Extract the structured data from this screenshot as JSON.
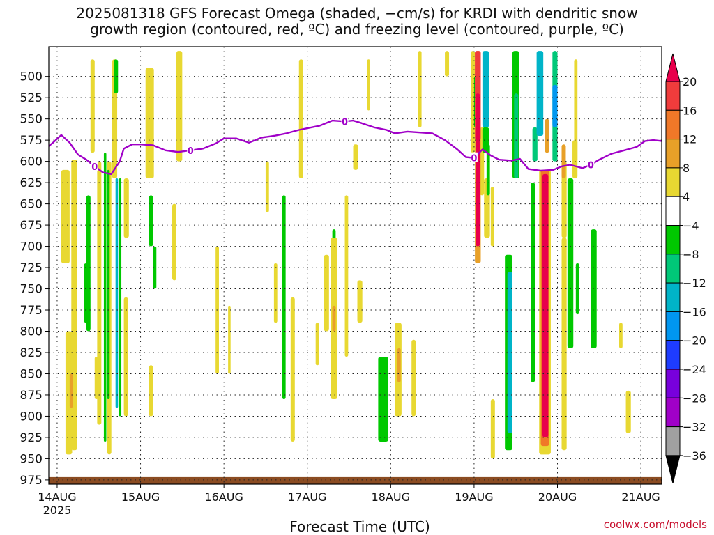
{
  "title_line1": "2025081318 GFS Forecast Omega (shaded, −cm/s) for KRDI with dendritic snow",
  "title_line2": "growth region (contoured, red, ºC) and freezing level (contoured, purple, ºC)",
  "xaxis_title": "Forecast Time (UTC)",
  "credit": "coolwx.com/models",
  "colors": {
    "freezing_line": "#a000c8",
    "ground": "#8b4c22",
    "grid": "#222222"
  },
  "chart_data": {
    "type": "heatmap",
    "y_ticks": [
      "500",
      "525",
      "550",
      "575",
      "600",
      "625",
      "650",
      "675",
      "700",
      "725",
      "750",
      "775",
      "800",
      "825",
      "850",
      "875",
      "900",
      "925",
      "950",
      "975"
    ],
    "x_ticks": [
      "14AUG",
      "15AUG",
      "16AUG",
      "17AUG",
      "18AUG",
      "19AUG",
      "20AUG",
      "21AUG"
    ],
    "x_year": "2025",
    "ylim": [
      465,
      980
    ],
    "xlim_days": [
      13.9,
      21.25
    ],
    "legend": {
      "labels": [
        "20",
        "16",
        "12",
        "8",
        "4",
        "−4",
        "−8",
        "−12",
        "−16",
        "−20",
        "−24",
        "−28",
        "−32",
        "−36"
      ],
      "colors": [
        "#e8004c",
        "#f03c3c",
        "#f07828",
        "#e8a028",
        "#e8d832",
        "#ffffff",
        "#00c800",
        "#00c878",
        "#00b4c8",
        "#0096f0",
        "#1e3cff",
        "#7800dc",
        "#a000c8",
        "#a0a0a0",
        "#000000"
      ]
    },
    "freezing_level_label": "0",
    "freezing_level": [
      [
        13.9,
        582
      ],
      [
        13.95,
        578
      ],
      [
        14.05,
        569
      ],
      [
        14.15,
        578
      ],
      [
        14.25,
        592
      ],
      [
        14.35,
        598
      ],
      [
        14.45,
        606
      ],
      [
        14.55,
        613
      ],
      [
        14.65,
        615
      ],
      [
        14.75,
        600
      ],
      [
        14.8,
        585
      ],
      [
        14.9,
        580
      ],
      [
        15.0,
        580
      ],
      [
        15.15,
        581
      ],
      [
        15.3,
        587
      ],
      [
        15.45,
        589
      ],
      [
        15.6,
        587
      ],
      [
        15.75,
        585
      ],
      [
        15.9,
        579
      ],
      [
        16.0,
        573
      ],
      [
        16.15,
        573
      ],
      [
        16.3,
        578
      ],
      [
        16.45,
        572
      ],
      [
        16.6,
        570
      ],
      [
        16.75,
        567
      ],
      [
        16.9,
        563
      ],
      [
        17.0,
        561
      ],
      [
        17.15,
        558
      ],
      [
        17.3,
        552
      ],
      [
        17.45,
        553
      ],
      [
        17.55,
        552
      ],
      [
        17.65,
        555
      ],
      [
        17.8,
        560
      ],
      [
        17.95,
        563
      ],
      [
        18.05,
        567
      ],
      [
        18.2,
        565
      ],
      [
        18.35,
        566
      ],
      [
        18.5,
        567
      ],
      [
        18.65,
        575
      ],
      [
        18.8,
        586
      ],
      [
        18.9,
        595
      ],
      [
        19.0,
        596
      ],
      [
        19.1,
        586
      ],
      [
        19.2,
        593
      ],
      [
        19.3,
        598
      ],
      [
        19.45,
        599
      ],
      [
        19.55,
        597
      ],
      [
        19.65,
        609
      ],
      [
        19.8,
        611
      ],
      [
        19.95,
        610
      ],
      [
        20.05,
        606
      ],
      [
        20.15,
        604
      ],
      [
        20.3,
        608
      ],
      [
        20.4,
        604
      ],
      [
        20.5,
        598
      ],
      [
        20.65,
        591
      ],
      [
        20.8,
        587
      ],
      [
        20.95,
        583
      ],
      [
        21.05,
        576
      ],
      [
        21.15,
        575
      ],
      [
        21.25,
        576
      ]
    ],
    "shaded_regions": [
      {
        "x": 14.17,
        "w": 0.07,
        "p": [
          598,
          940
        ],
        "c": 4
      },
      {
        "x": 14.32,
        "w": 0.05,
        "p": [
          720,
          790
        ],
        "c": 6
      },
      {
        "x": 14.35,
        "w": 0.05,
        "p": [
          640,
          800
        ],
        "c": 6
      },
      {
        "x": 14.48,
        "w": 0.05,
        "p": [
          600,
          910
        ],
        "c": 4
      },
      {
        "x": 14.56,
        "w": 0.03,
        "p": [
          590,
          930
        ],
        "c": 6
      },
      {
        "x": 14.6,
        "w": 0.05,
        "p": [
          600,
          945
        ],
        "c": 4
      },
      {
        "x": 14.7,
        "w": 0.03,
        "p": [
          620,
          890
        ],
        "c": 8
      },
      {
        "x": 14.74,
        "w": 0.03,
        "p": [
          620,
          900
        ],
        "c": 6
      },
      {
        "x": 15.1,
        "w": 0.05,
        "p": [
          640,
          700
        ],
        "c": 6
      },
      {
        "x": 15.15,
        "w": 0.04,
        "p": [
          700,
          750
        ],
        "c": 6
      },
      {
        "x": 16.7,
        "w": 0.04,
        "p": [
          640,
          880
        ],
        "c": 6
      },
      {
        "x": 17.3,
        "w": 0.04,
        "p": [
          680,
          760
        ],
        "c": 6
      },
      {
        "x": 17.85,
        "w": 0.12,
        "p": [
          830,
          930
        ],
        "c": 6
      },
      {
        "x": 19.37,
        "w": 0.09,
        "p": [
          710,
          940
        ],
        "c": 6
      },
      {
        "x": 19.4,
        "w": 0.06,
        "p": [
          730,
          920
        ],
        "c": 8
      },
      {
        "x": 19.7,
        "w": 0.06,
        "p": [
          560,
          600
        ],
        "c": 7
      },
      {
        "x": 19.94,
        "w": 0.06,
        "p": [
          470,
          600
        ],
        "c": 7
      },
      {
        "x": 19.94,
        "w": 0.06,
        "p": [
          510,
          560
        ],
        "c": 9
      },
      {
        "x": 20.12,
        "w": 0.07,
        "p": [
          620,
          820
        ],
        "c": 6
      },
      {
        "x": 20.22,
        "w": 0.04,
        "p": [
          720,
          780
        ],
        "c": 6
      },
      {
        "x": 20.4,
        "w": 0.07,
        "p": [
          680,
          820
        ],
        "c": 6
      },
      {
        "x": 14.05,
        "w": 0.1,
        "p": [
          610,
          720
        ],
        "c": 4
      },
      {
        "x": 14.1,
        "w": 0.08,
        "p": [
          800,
          945
        ],
        "c": 4
      },
      {
        "x": 14.15,
        "w": 0.04,
        "p": [
          850,
          890
        ],
        "c": 3
      },
      {
        "x": 14.4,
        "w": 0.05,
        "p": [
          480,
          590
        ],
        "c": 4
      },
      {
        "x": 14.66,
        "w": 0.06,
        "p": [
          480,
          620
        ],
        "c": 4
      },
      {
        "x": 14.8,
        "w": 0.06,
        "p": [
          620,
          690
        ],
        "c": 4
      },
      {
        "x": 14.8,
        "w": 0.05,
        "p": [
          760,
          900
        ],
        "c": 4
      },
      {
        "x": 15.06,
        "w": 0.1,
        "p": [
          490,
          620
        ],
        "c": 4
      },
      {
        "x": 15.1,
        "w": 0.05,
        "p": [
          840,
          900
        ],
        "c": 4
      },
      {
        "x": 15.43,
        "w": 0.07,
        "p": [
          470,
          600
        ],
        "c": 4
      },
      {
        "x": 15.38,
        "w": 0.05,
        "p": [
          650,
          740
        ],
        "c": 4
      },
      {
        "x": 15.9,
        "w": 0.04,
        "p": [
          700,
          850
        ],
        "c": 4
      },
      {
        "x": 16.5,
        "w": 0.04,
        "p": [
          600,
          660
        ],
        "c": 4
      },
      {
        "x": 16.6,
        "w": 0.04,
        "p": [
          720,
          790
        ],
        "c": 4
      },
      {
        "x": 16.8,
        "w": 0.05,
        "p": [
          760,
          930
        ],
        "c": 4
      },
      {
        "x": 16.9,
        "w": 0.05,
        "p": [
          480,
          620
        ],
        "c": 4
      },
      {
        "x": 17.1,
        "w": 0.04,
        "p": [
          790,
          840
        ],
        "c": 4
      },
      {
        "x": 17.2,
        "w": 0.06,
        "p": [
          710,
          800
        ],
        "c": 4
      },
      {
        "x": 17.28,
        "w": 0.08,
        "p": [
          690,
          880
        ],
        "c": 4
      },
      {
        "x": 17.3,
        "w": 0.04,
        "p": [
          770,
          800
        ],
        "c": 3
      },
      {
        "x": 17.45,
        "w": 0.04,
        "p": [
          640,
          830
        ],
        "c": 4
      },
      {
        "x": 17.55,
        "w": 0.06,
        "p": [
          580,
          610
        ],
        "c": 4
      },
      {
        "x": 17.6,
        "w": 0.06,
        "p": [
          740,
          790
        ],
        "c": 4
      },
      {
        "x": 17.72,
        "w": 0.03,
        "p": [
          480,
          540
        ],
        "c": 4
      },
      {
        "x": 18.05,
        "w": 0.08,
        "p": [
          790,
          900
        ],
        "c": 4
      },
      {
        "x": 18.08,
        "w": 0.04,
        "p": [
          820,
          860
        ],
        "c": 3
      },
      {
        "x": 18.25,
        "w": 0.05,
        "p": [
          810,
          900
        ],
        "c": 4
      },
      {
        "x": 18.33,
        "w": 0.04,
        "p": [
          470,
          560
        ],
        "c": 4
      },
      {
        "x": 18.96,
        "w": 0.05,
        "p": [
          470,
          590
        ],
        "c": 4
      },
      {
        "x": 19.07,
        "w": 0.05,
        "p": [
          560,
          640
        ],
        "c": 4
      },
      {
        "x": 19.12,
        "w": 0.07,
        "p": [
          620,
          690
        ],
        "c": 4
      },
      {
        "x": 19.2,
        "w": 0.04,
        "p": [
          630,
          700
        ],
        "c": 4
      },
      {
        "x": 19.2,
        "w": 0.05,
        "p": [
          880,
          950
        ],
        "c": 4
      },
      {
        "x": 20.05,
        "w": 0.06,
        "p": [
          600,
          690
        ],
        "c": 4
      },
      {
        "x": 20.05,
        "w": 0.06,
        "p": [
          690,
          940
        ],
        "c": 4
      },
      {
        "x": 20.05,
        "w": 0.05,
        "p": [
          580,
          620
        ],
        "c": 3
      },
      {
        "x": 20.18,
        "w": 0.06,
        "p": [
          575,
          620
        ],
        "c": 4
      },
      {
        "x": 20.2,
        "w": 0.04,
        "p": [
          480,
          600
        ],
        "c": 4
      },
      {
        "x": 20.82,
        "w": 0.06,
        "p": [
          870,
          920
        ],
        "c": 4
      },
      {
        "x": 20.74,
        "w": 0.04,
        "p": [
          790,
          820
        ],
        "c": 4
      },
      {
        "x": 14.45,
        "w": 0.04,
        "p": [
          830,
          880
        ],
        "c": 4
      },
      {
        "x": 14.68,
        "w": 0.05,
        "p": [
          480,
          520
        ],
        "c": 6
      },
      {
        "x": 14.6,
        "w": 0.03,
        "p": [
          610,
          880
        ],
        "c": 6
      },
      {
        "x": 16.05,
        "w": 0.03,
        "p": [
          770,
          850
        ],
        "c": 4
      },
      {
        "x": 19.0,
        "w": 0.04,
        "p": [
          500,
          560
        ],
        "c": 6
      },
      {
        "x": 19.15,
        "w": 0.04,
        "p": [
          580,
          640
        ],
        "c": 6
      },
      {
        "x": 18.65,
        "w": 0.05,
        "p": [
          470,
          500
        ],
        "c": 4
      },
      {
        "x": 19.01,
        "w": 0.07,
        "p": [
          470,
          720
        ],
        "c": 3
      },
      {
        "x": 19.01,
        "w": 0.07,
        "p": [
          470,
          575
        ],
        "c": 1
      },
      {
        "x": 19.02,
        "w": 0.05,
        "p": [
          520,
          700
        ],
        "c": 0
      },
      {
        "x": 19.1,
        "w": 0.08,
        "p": [
          470,
          560
        ],
        "c": 8
      },
      {
        "x": 19.1,
        "w": 0.08,
        "p": [
          560,
          590
        ],
        "c": 6
      },
      {
        "x": 19.46,
        "w": 0.08,
        "p": [
          470,
          620
        ],
        "c": 6
      },
      {
        "x": 19.48,
        "w": 0.05,
        "p": [
          520,
          620
        ],
        "c": 7
      },
      {
        "x": 19.78,
        "w": 0.14,
        "p": [
          610,
          945
        ],
        "c": 4
      },
      {
        "x": 19.8,
        "w": 0.1,
        "p": [
          610,
          935
        ],
        "c": 2
      },
      {
        "x": 19.82,
        "w": 0.07,
        "p": [
          615,
          925
        ],
        "c": 0
      },
      {
        "x": 19.85,
        "w": 0.05,
        "p": [
          550,
          590
        ],
        "c": 3
      },
      {
        "x": 19.75,
        "w": 0.08,
        "p": [
          470,
          570
        ],
        "c": 8
      },
      {
        "x": 19.68,
        "w": 0.05,
        "p": [
          625,
          860
        ],
        "c": 6
      }
    ]
  }
}
